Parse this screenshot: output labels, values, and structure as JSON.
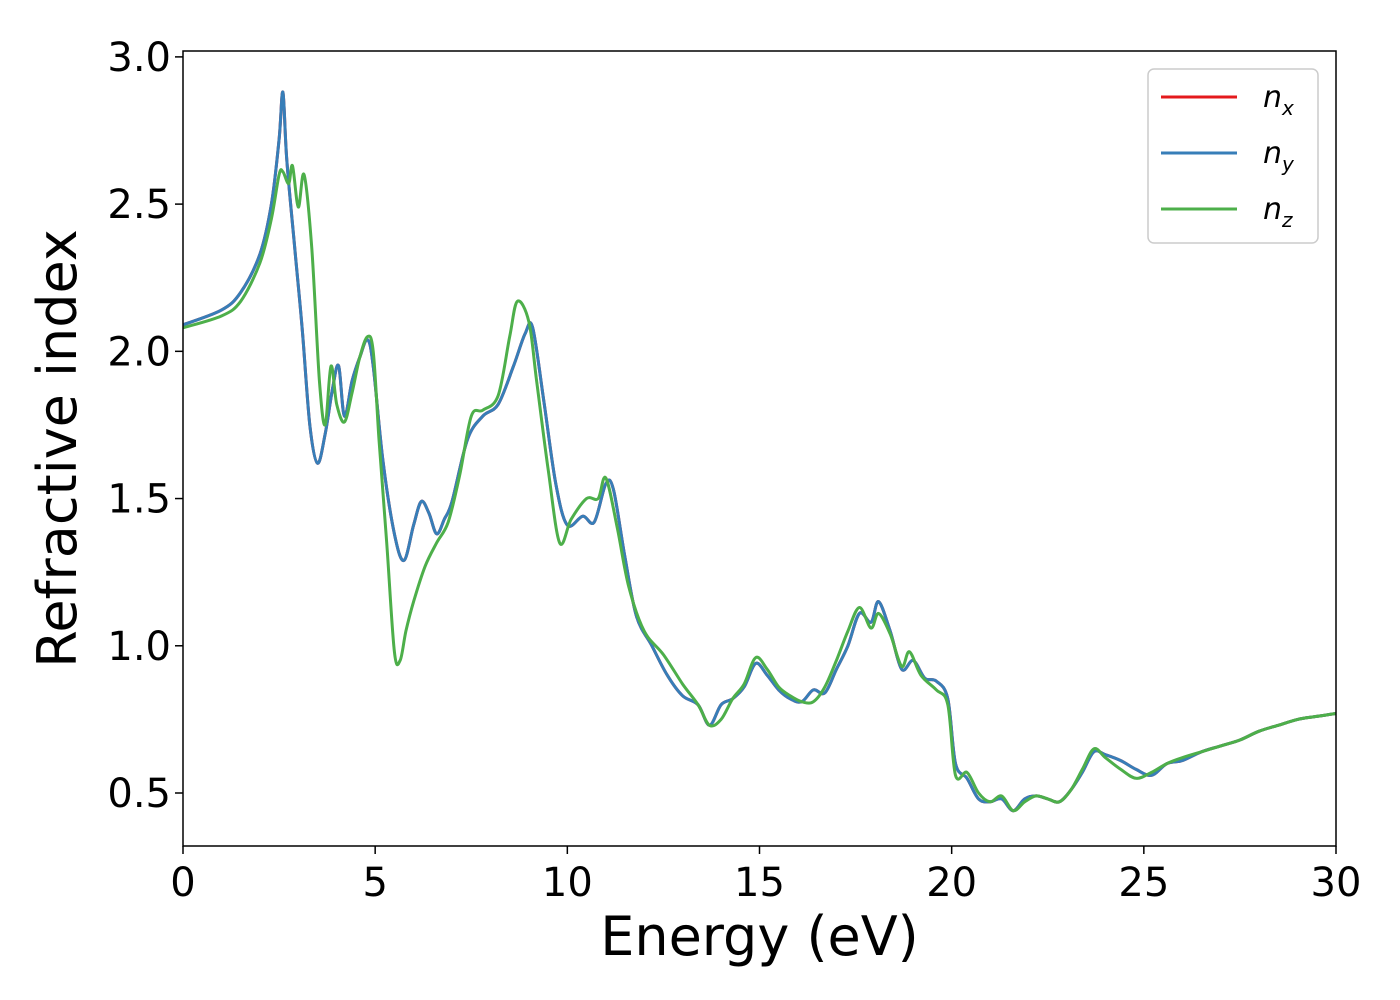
{
  "chart_data": {
    "type": "line",
    "title": "",
    "xlabel": "Energy (eV)",
    "ylabel": "Refractive index",
    "xlim": [
      0,
      30
    ],
    "ylim": [
      0.32,
      3.02
    ],
    "xticks": [
      0,
      5,
      10,
      15,
      20,
      25,
      30
    ],
    "xtick_labels": [
      "0",
      "5",
      "10",
      "15",
      "20",
      "25",
      "30"
    ],
    "yticks": [
      0.5,
      1.0,
      1.5,
      2.0,
      2.5,
      3.0
    ],
    "ytick_labels": [
      "0.5",
      "1.0",
      "1.5",
      "2.0",
      "2.5",
      "3.0"
    ],
    "grid": false,
    "legend_position": "top-right",
    "series": [
      {
        "name": "n",
        "subscript": "x",
        "color": "#e41a1c",
        "x": [
          0,
          1,
          1.5,
          2,
          2.3,
          2.5,
          2.6,
          2.7,
          2.9,
          3.1,
          3.3,
          3.5,
          3.7,
          3.9,
          4.05,
          4.2,
          4.4,
          4.6,
          4.8,
          4.95,
          5.2,
          5.5,
          5.75,
          6,
          6.2,
          6.4,
          6.6,
          6.8,
          7,
          7.4,
          7.8,
          8.2,
          8.6,
          8.9,
          9.1,
          9.4,
          9.7,
          10,
          10.4,
          10.7,
          11,
          11.2,
          11.5,
          11.8,
          12.2,
          12.6,
          13,
          13.4,
          13.7,
          14,
          14.3,
          14.6,
          14.9,
          15.2,
          15.5,
          15.8,
          16.1,
          16.4,
          16.7,
          17,
          17.3,
          17.6,
          17.9,
          18.1,
          18.4,
          18.7,
          19,
          19.3,
          19.6,
          19.9,
          20.1,
          20.4,
          20.7,
          21,
          21.3,
          21.6,
          21.9,
          22.2,
          22.5,
          22.8,
          23.1,
          23.4,
          23.7,
          24,
          24.4,
          24.8,
          25.2,
          25.6,
          26,
          26.5,
          27,
          27.5,
          28,
          28.5,
          29,
          29.5,
          30
        ],
        "y": [
          2.09,
          2.14,
          2.2,
          2.33,
          2.5,
          2.72,
          2.88,
          2.65,
          2.36,
          2.08,
          1.75,
          1.62,
          1.72,
          1.88,
          1.95,
          1.78,
          1.9,
          1.98,
          2.04,
          1.95,
          1.63,
          1.38,
          1.29,
          1.41,
          1.49,
          1.45,
          1.38,
          1.43,
          1.49,
          1.7,
          1.78,
          1.82,
          1.95,
          2.06,
          2.08,
          1.82,
          1.55,
          1.41,
          1.44,
          1.42,
          1.55,
          1.53,
          1.3,
          1.1,
          1.0,
          0.9,
          0.83,
          0.8,
          0.73,
          0.8,
          0.82,
          0.86,
          0.94,
          0.9,
          0.85,
          0.82,
          0.81,
          0.85,
          0.84,
          0.92,
          1.0,
          1.11,
          1.08,
          1.15,
          1.05,
          0.92,
          0.95,
          0.89,
          0.88,
          0.82,
          0.6,
          0.55,
          0.48,
          0.47,
          0.48,
          0.44,
          0.48,
          0.49,
          0.48,
          0.47,
          0.51,
          0.57,
          0.64,
          0.63,
          0.61,
          0.58,
          0.56,
          0.6,
          0.61,
          0.64,
          0.66,
          0.68,
          0.71,
          0.73,
          0.75,
          0.76,
          0.77
        ]
      },
      {
        "name": "n",
        "subscript": "y",
        "color": "#377eb8",
        "x": [
          0,
          1,
          1.5,
          2,
          2.3,
          2.5,
          2.6,
          2.7,
          2.9,
          3.1,
          3.3,
          3.5,
          3.7,
          3.9,
          4.05,
          4.2,
          4.4,
          4.6,
          4.8,
          4.95,
          5.2,
          5.5,
          5.75,
          6,
          6.2,
          6.4,
          6.6,
          6.8,
          7,
          7.4,
          7.8,
          8.2,
          8.6,
          8.9,
          9.1,
          9.4,
          9.7,
          10,
          10.4,
          10.7,
          11,
          11.2,
          11.5,
          11.8,
          12.2,
          12.6,
          13,
          13.4,
          13.7,
          14,
          14.3,
          14.6,
          14.9,
          15.2,
          15.5,
          15.8,
          16.1,
          16.4,
          16.7,
          17,
          17.3,
          17.6,
          17.9,
          18.1,
          18.4,
          18.7,
          19,
          19.3,
          19.6,
          19.9,
          20.1,
          20.4,
          20.7,
          21,
          21.3,
          21.6,
          21.9,
          22.2,
          22.5,
          22.8,
          23.1,
          23.4,
          23.7,
          24,
          24.4,
          24.8,
          25.2,
          25.6,
          26,
          26.5,
          27,
          27.5,
          28,
          28.5,
          29,
          29.5,
          30
        ],
        "y": [
          2.09,
          2.14,
          2.2,
          2.33,
          2.5,
          2.72,
          2.88,
          2.65,
          2.36,
          2.08,
          1.75,
          1.62,
          1.72,
          1.88,
          1.95,
          1.78,
          1.9,
          1.98,
          2.04,
          1.95,
          1.63,
          1.38,
          1.29,
          1.41,
          1.49,
          1.45,
          1.38,
          1.43,
          1.49,
          1.7,
          1.78,
          1.82,
          1.95,
          2.06,
          2.08,
          1.82,
          1.55,
          1.41,
          1.44,
          1.42,
          1.55,
          1.53,
          1.3,
          1.1,
          1.0,
          0.9,
          0.83,
          0.8,
          0.73,
          0.8,
          0.82,
          0.86,
          0.94,
          0.9,
          0.85,
          0.82,
          0.81,
          0.85,
          0.84,
          0.92,
          1.0,
          1.11,
          1.08,
          1.15,
          1.05,
          0.92,
          0.95,
          0.89,
          0.88,
          0.82,
          0.6,
          0.55,
          0.48,
          0.47,
          0.48,
          0.44,
          0.48,
          0.49,
          0.48,
          0.47,
          0.51,
          0.57,
          0.64,
          0.63,
          0.61,
          0.58,
          0.56,
          0.6,
          0.61,
          0.64,
          0.66,
          0.68,
          0.71,
          0.73,
          0.75,
          0.76,
          0.77
        ]
      },
      {
        "name": "n",
        "subscript": "z",
        "color": "#4daf4a",
        "x": [
          0,
          1,
          1.5,
          2,
          2.3,
          2.5,
          2.6,
          2.75,
          2.85,
          3.0,
          3.15,
          3.35,
          3.55,
          3.7,
          3.85,
          4.0,
          4.2,
          4.4,
          4.6,
          4.8,
          4.95,
          5.1,
          5.3,
          5.5,
          5.65,
          5.8,
          6,
          6.3,
          6.6,
          6.9,
          7.2,
          7.5,
          7.8,
          8.2,
          8.5,
          8.7,
          9.0,
          9.2,
          9.5,
          9.8,
          10.1,
          10.5,
          10.8,
          11.0,
          11.3,
          11.6,
          12,
          12.5,
          13,
          13.4,
          13.7,
          14,
          14.3,
          14.6,
          14.9,
          15.2,
          15.5,
          15.8,
          16.1,
          16.4,
          16.7,
          17,
          17.3,
          17.6,
          17.9,
          18.1,
          18.4,
          18.7,
          18.9,
          19.2,
          19.6,
          19.9,
          20.1,
          20.4,
          20.7,
          21,
          21.3,
          21.6,
          21.9,
          22.2,
          22.5,
          22.8,
          23.1,
          23.4,
          23.7,
          24,
          24.4,
          24.8,
          25.2,
          25.6,
          26,
          26.5,
          27,
          27.5,
          28,
          28.5,
          29,
          29.5,
          30
        ],
        "y": [
          2.08,
          2.12,
          2.17,
          2.3,
          2.45,
          2.6,
          2.61,
          2.57,
          2.63,
          2.49,
          2.6,
          2.35,
          1.9,
          1.75,
          1.95,
          1.82,
          1.76,
          1.86,
          1.98,
          2.05,
          2.0,
          1.7,
          1.35,
          0.98,
          0.95,
          1.05,
          1.15,
          1.27,
          1.35,
          1.42,
          1.58,
          1.78,
          1.8,
          1.85,
          2.05,
          2.17,
          2.1,
          1.9,
          1.6,
          1.35,
          1.43,
          1.5,
          1.5,
          1.57,
          1.4,
          1.2,
          1.05,
          0.97,
          0.87,
          0.8,
          0.73,
          0.75,
          0.82,
          0.87,
          0.96,
          0.92,
          0.86,
          0.83,
          0.81,
          0.81,
          0.86,
          0.95,
          1.05,
          1.13,
          1.06,
          1.11,
          1.04,
          0.93,
          0.98,
          0.9,
          0.85,
          0.8,
          0.56,
          0.57,
          0.5,
          0.47,
          0.49,
          0.44,
          0.47,
          0.49,
          0.48,
          0.47,
          0.51,
          0.58,
          0.65,
          0.62,
          0.58,
          0.55,
          0.57,
          0.6,
          0.62,
          0.64,
          0.66,
          0.68,
          0.71,
          0.73,
          0.75,
          0.76,
          0.77
        ]
      }
    ]
  }
}
